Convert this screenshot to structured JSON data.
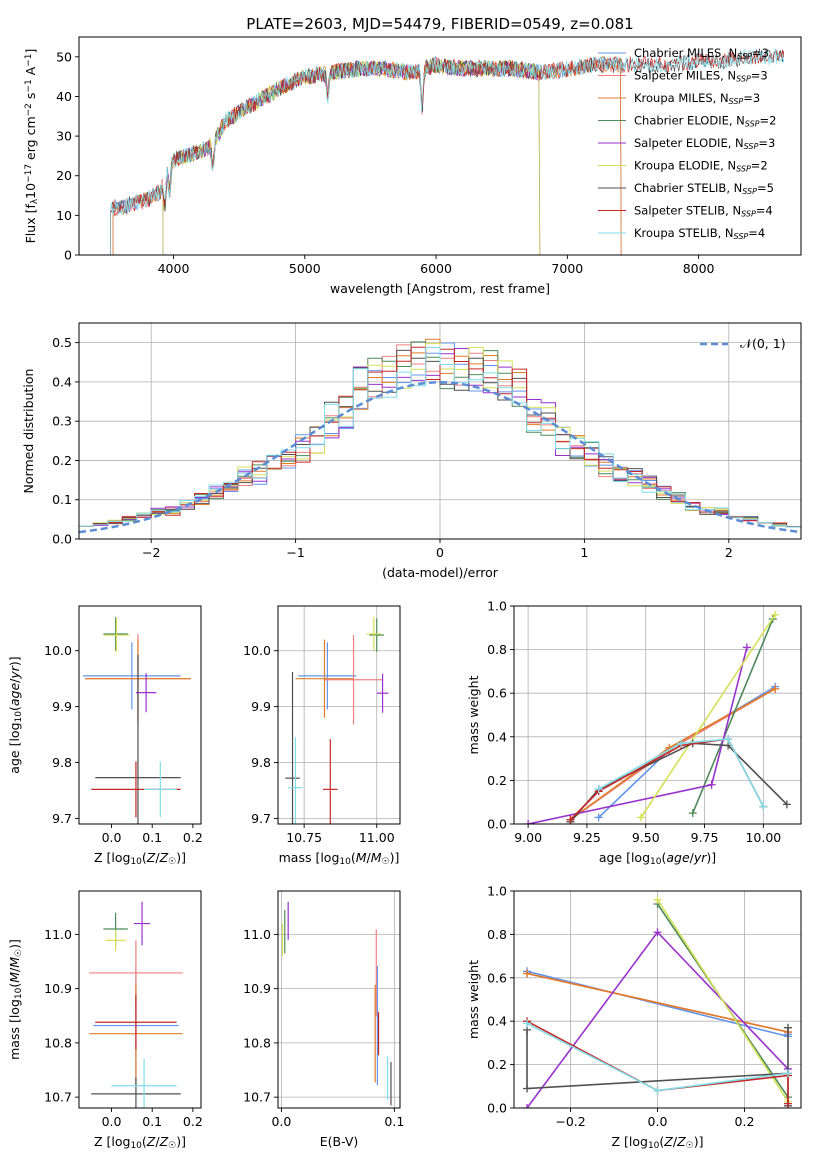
{
  "figure_title": "PLATE=2603, MJD=54479, FIBERID=0549, z=0.081",
  "colors": {
    "chabrier_miles": "#6495ED",
    "salpeter_miles": "#F08080",
    "kroupa_miles": "#E07B28",
    "chabrier_elodie": "#4E8A5A",
    "salpeter_elodie": "#9932CC",
    "kroupa_elodie": "#D4E157",
    "chabrier_stelib": "#505050",
    "salpeter_stelib": "#C62828",
    "kroupa_stelib": "#80DEEA",
    "normal_curve": "#5B8DD6",
    "grid": "#B0B0B0"
  },
  "chart_data": [
    {
      "id": "spectrum",
      "type": "line",
      "title": "PLATE=2603, MJD=54479, FIBERID=0549, z=0.081",
      "xlabel": "wavelength [Angstrom, rest frame]",
      "ylabel": "Flux [f_λ 10^-17 erg cm^-2 s^-1 A^-1]",
      "xlim": [
        3280,
        8780
      ],
      "ylim": [
        0,
        55
      ],
      "xticks": [
        4000,
        5000,
        6000,
        7000,
        8000
      ],
      "yticks": [
        0,
        10,
        20,
        30,
        40,
        50
      ],
      "grid": false,
      "legend_position": "top-right",
      "legend": [
        "Chabrier MILES, N_SSP=3",
        "Salpeter MILES, N_SSP=3",
        "Kroupa MILES, N_SSP=3",
        "Chabrier ELODIE, N_SSP=2",
        "Salpeter ELODIE, N_SSP=3",
        "Kroupa ELODIE, N_SSP=2",
        "Chabrier STELIB, N_SSP=5",
        "Salpeter STELIB, N_SSP=4",
        "Kroupa STELIB, N_SSP=4"
      ],
      "continuum": {
        "wavelength": [
          3520,
          3600,
          3700,
          3800,
          3900,
          3950,
          4000,
          4100,
          4200,
          4300,
          4400,
          4600,
          4800,
          5000,
          5200,
          5400,
          5600,
          5800,
          6000,
          6200,
          6400,
          6600,
          6800,
          7000,
          7200,
          7400,
          7600,
          7800,
          8000,
          8200,
          8400,
          8650
        ],
        "flux": [
          12,
          12,
          13,
          14,
          16,
          22,
          24,
          25,
          26,
          28,
          34,
          38,
          42,
          45,
          46,
          47,
          47,
          46,
          48,
          47,
          47,
          47,
          46,
          47,
          48,
          48,
          48,
          48,
          49,
          49,
          50,
          50
        ]
      },
      "coverage": {
        "MILES": [
          3540,
          7410
        ],
        "ELODIE": [
          3920,
          6790
        ],
        "STELIB": [
          3200,
          9300
        ]
      },
      "absorption_features": [
        {
          "wavelength": 3934,
          "depth": 8
        },
        {
          "wavelength": 3969,
          "depth": 7
        },
        {
          "wavelength": 4300,
          "depth": 6
        },
        {
          "wavelength": 5175,
          "depth": 6
        },
        {
          "wavelength": 5893,
          "depth": 10
        }
      ]
    },
    {
      "id": "residuals",
      "type": "histogram",
      "xlabel": "(data-model)/error",
      "ylabel": "Normed distribution",
      "xlim": [
        -2.5,
        2.5
      ],
      "ylim": [
        0,
        0.55
      ],
      "xticks": [
        -2,
        -1,
        0,
        1,
        2
      ],
      "yticks": [
        0.0,
        0.1,
        0.2,
        0.3,
        0.4,
        0.5
      ],
      "grid": true,
      "bin_width": 0.1,
      "reference_curve": {
        "name": "𝒩(0, 1)",
        "mean": 0,
        "sigma": 1,
        "style": "dashed"
      },
      "legend_position": "top-right"
    },
    {
      "id": "age_vs_Z",
      "type": "scatter",
      "xlabel": "Z [log₁₀(Z/Z☉)]",
      "ylabel": "age [log₁₀(age/yr)]",
      "xlim": [
        -0.08,
        0.22
      ],
      "ylim": [
        9.69,
        10.08
      ],
      "xticks": [
        0.0,
        0.1,
        0.2
      ],
      "yticks": [
        9.7,
        9.8,
        9.9,
        10.0
      ],
      "grid": false,
      "points": [
        {
          "model": "chabrier_miles",
          "x": 0.05,
          "y": 9.955,
          "xerr": 0.12,
          "yerr": 0.06
        },
        {
          "model": "salpeter_miles",
          "x": 0.065,
          "y": 9.95,
          "xerr": 0.13,
          "yerr": 0.08
        },
        {
          "model": "kroupa_miles",
          "x": 0.065,
          "y": 9.95,
          "xerr": 0.13,
          "yerr": 0.07
        },
        {
          "model": "chabrier_elodie",
          "x": 0.01,
          "y": 10.03,
          "xerr": 0.03,
          "yerr": 0.03
        },
        {
          "model": "salpeter_elodie",
          "x": 0.085,
          "y": 9.925,
          "xerr": 0.025,
          "yerr": 0.035
        },
        {
          "model": "kroupa_elodie",
          "x": 0.012,
          "y": 10.028,
          "xerr": 0.032,
          "yerr": 0.03
        },
        {
          "model": "chabrier_stelib",
          "x": 0.065,
          "y": 9.773,
          "xerr": 0.105,
          "yerr": 0.22
        },
        {
          "model": "salpeter_stelib",
          "x": 0.06,
          "y": 9.752,
          "xerr": 0.11,
          "yerr": 0.05
        },
        {
          "model": "kroupa_stelib",
          "x": 0.12,
          "y": 9.752,
          "xerr": 0.04,
          "yerr": 0.05
        }
      ]
    },
    {
      "id": "age_vs_mass",
      "type": "scatter",
      "xlabel": "mass [log₁₀(M/M☉)]",
      "ylabel": "",
      "xlim": [
        10.66,
        11.08
      ],
      "ylim": [
        9.69,
        10.08
      ],
      "xticks": [
        10.75,
        11.0
      ],
      "yticks": [
        9.7,
        9.8,
        9.9,
        10.0
      ],
      "grid": true,
      "points": [
        {
          "model": "chabrier_miles",
          "x": 10.83,
          "y": 9.955,
          "xerr": 0.1,
          "yerr": 0.06
        },
        {
          "model": "salpeter_miles",
          "x": 10.92,
          "y": 9.948,
          "xerr": 0.1,
          "yerr": 0.08
        },
        {
          "model": "kroupa_miles",
          "x": 10.82,
          "y": 9.95,
          "xerr": 0.1,
          "yerr": 0.07
        },
        {
          "model": "chabrier_elodie",
          "x": 11.0,
          "y": 10.028,
          "xerr": 0.025,
          "yerr": 0.03
        },
        {
          "model": "salpeter_elodie",
          "x": 11.02,
          "y": 9.924,
          "xerr": 0.02,
          "yerr": 0.035
        },
        {
          "model": "kroupa_elodie",
          "x": 10.99,
          "y": 10.03,
          "xerr": 0.025,
          "yerr": 0.03
        },
        {
          "model": "chabrier_stelib",
          "x": 10.71,
          "y": 9.772,
          "xerr": 0.025,
          "yerr": 0.19
        },
        {
          "model": "salpeter_stelib",
          "x": 10.84,
          "y": 9.752,
          "xerr": 0.025,
          "yerr": 0.09
        },
        {
          "model": "kroupa_stelib",
          "x": 10.72,
          "y": 9.755,
          "xerr": 0.025,
          "yerr": 0.09
        }
      ]
    },
    {
      "id": "weight_vs_age",
      "type": "line",
      "xlabel": "age [log₁₀(age/yr)]",
      "ylabel": "mass weight",
      "xlim": [
        8.94,
        10.16
      ],
      "ylim": [
        0,
        1.0
      ],
      "xticks": [
        9.0,
        9.25,
        9.5,
        9.75,
        10.0
      ],
      "yticks": [
        0.0,
        0.2,
        0.4,
        0.6,
        0.8,
        1.0
      ],
      "grid": true,
      "series": [
        {
          "model": "chabrier_miles",
          "x": [
            9.3,
            9.6,
            10.05
          ],
          "y": [
            0.03,
            0.34,
            0.63
          ]
        },
        {
          "model": "salpeter_miles",
          "x": [
            9.18,
            9.6,
            10.05
          ],
          "y": [
            0.02,
            0.34,
            0.62
          ]
        },
        {
          "model": "kroupa_miles",
          "x": [
            9.18,
            9.6,
            10.05
          ],
          "y": [
            0.02,
            0.35,
            0.62
          ]
        },
        {
          "model": "chabrier_elodie",
          "x": [
            9.7,
            10.04
          ],
          "y": [
            0.05,
            0.94
          ]
        },
        {
          "model": "salpeter_elodie",
          "x": [
            9.0,
            9.78,
            9.93
          ],
          "y": [
            0.0,
            0.18,
            0.81
          ]
        },
        {
          "model": "kroupa_elodie",
          "x": [
            9.48,
            10.05
          ],
          "y": [
            0.03,
            0.96
          ]
        },
        {
          "model": "chabrier_stelib",
          "x": [
            9.18,
            9.3,
            9.7,
            9.85,
            10.1
          ],
          "y": [
            0.01,
            0.16,
            0.37,
            0.36,
            0.09
          ]
        },
        {
          "model": "salpeter_stelib",
          "x": [
            9.18,
            9.3,
            9.65,
            9.85,
            10.0
          ],
          "y": [
            0.02,
            0.15,
            0.36,
            0.39,
            0.08
          ]
        },
        {
          "model": "kroupa_stelib",
          "x": [
            9.3,
            9.65,
            9.85,
            10.0
          ],
          "y": [
            0.16,
            0.37,
            0.39,
            0.08
          ]
        }
      ]
    },
    {
      "id": "mass_vs_Z",
      "type": "scatter",
      "xlabel": "Z [log₁₀(Z/Z☉)]",
      "ylabel": "mass [log₁₀(M/M☉)]",
      "xlim": [
        -0.08,
        0.22
      ],
      "ylim": [
        10.68,
        11.08
      ],
      "xticks": [
        0.0,
        0.1,
        0.2
      ],
      "yticks": [
        10.7,
        10.8,
        10.9,
        11.0
      ],
      "grid": false,
      "points": [
        {
          "model": "chabrier_miles",
          "x": 0.06,
          "y": 10.832,
          "xerr": 0.105,
          "yerr": 0.11
        },
        {
          "model": "salpeter_miles",
          "x": 0.06,
          "y": 10.929,
          "xerr": 0.115,
          "yerr": 0.06
        },
        {
          "model": "kroupa_miles",
          "x": 0.06,
          "y": 10.817,
          "xerr": 0.115,
          "yerr": 0.09
        },
        {
          "model": "chabrier_elodie",
          "x": 0.01,
          "y": 11.01,
          "xerr": 0.03,
          "yerr": 0.03
        },
        {
          "model": "salpeter_elodie",
          "x": 0.075,
          "y": 11.02,
          "xerr": 0.02,
          "yerr": 0.04
        },
        {
          "model": "kroupa_elodie",
          "x": 0.01,
          "y": 10.989,
          "xerr": 0.025,
          "yerr": 0.02
        },
        {
          "model": "chabrier_stelib",
          "x": 0.06,
          "y": 10.706,
          "xerr": 0.11,
          "yerr": 0.03
        },
        {
          "model": "salpeter_stelib",
          "x": 0.06,
          "y": 10.838,
          "xerr": 0.1,
          "yerr": 0.05
        },
        {
          "model": "kroupa_stelib",
          "x": 0.08,
          "y": 10.721,
          "xerr": 0.08,
          "yerr": 0.05
        }
      ]
    },
    {
      "id": "mass_vs_ebv",
      "type": "scatter",
      "xlabel": "E(B-V)",
      "ylabel": "",
      "xlim": [
        -0.003,
        0.105
      ],
      "ylim": [
        10.68,
        11.08
      ],
      "xticks": [
        0.0,
        0.1
      ],
      "yticks": [
        10.7,
        10.8,
        10.9,
        11.0
      ],
      "grid": true,
      "points": [
        {
          "model": "chabrier_miles",
          "x": 0.085,
          "y": 10.832,
          "xerr": 0.0,
          "yerr": 0.11
        },
        {
          "model": "salpeter_miles",
          "x": 0.084,
          "y": 10.929,
          "xerr": 0.0,
          "yerr": 0.08
        },
        {
          "model": "kroupa_miles",
          "x": 0.083,
          "y": 10.817,
          "xerr": 0.0,
          "yerr": 0.09
        },
        {
          "model": "chabrier_elodie",
          "x": 0.003,
          "y": 11.005,
          "xerr": 0.0,
          "yerr": 0.04
        },
        {
          "model": "salpeter_elodie",
          "x": 0.006,
          "y": 11.025,
          "xerr": 0.0,
          "yerr": 0.035
        },
        {
          "model": "kroupa_elodie",
          "x": 0.001,
          "y": 10.99,
          "xerr": 0.0,
          "yerr": 0.03
        },
        {
          "model": "chabrier_stelib",
          "x": 0.097,
          "y": 10.725,
          "xerr": 0.0,
          "yerr": 0.04
        },
        {
          "model": "salpeter_stelib",
          "x": 0.086,
          "y": 10.817,
          "xerr": 0.0,
          "yerr": 0.04
        },
        {
          "model": "kroupa_stelib",
          "x": 0.094,
          "y": 10.735,
          "xerr": 0.0,
          "yerr": 0.04
        }
      ]
    },
    {
      "id": "weight_vs_Z",
      "type": "line",
      "xlabel": "Z [log₁₀(Z/Z☉)]",
      "ylabel": "mass weight",
      "xlim": [
        -0.33,
        0.33
      ],
      "ylim": [
        0,
        1.0
      ],
      "xticks": [
        -0.2,
        0.0,
        0.2
      ],
      "yticks": [
        0.0,
        0.2,
        0.4,
        0.6,
        0.8,
        1.0
      ],
      "grid": true,
      "series": [
        {
          "model": "chabrier_miles",
          "x": [
            -0.3,
            0.3,
            0.3
          ],
          "y": [
            0.63,
            0.33,
            0.34
          ]
        },
        {
          "model": "salpeter_miles",
          "x": [
            -0.3,
            0.3
          ],
          "y": [
            0.62,
            0.35
          ]
        },
        {
          "model": "kroupa_miles",
          "x": [
            -0.3,
            0.3
          ],
          "y": [
            0.62,
            0.35
          ]
        },
        {
          "model": "chabrier_elodie",
          "x": [
            0.0,
            0.3
          ],
          "y": [
            0.94,
            0.05
          ]
        },
        {
          "model": "salpeter_elodie",
          "x": [
            -0.3,
            0.0,
            0.3
          ],
          "y": [
            0.0,
            0.81,
            0.18
          ]
        },
        {
          "model": "kroupa_elodie",
          "x": [
            0.0,
            0.3
          ],
          "y": [
            0.96,
            0.03
          ]
        },
        {
          "model": "chabrier_stelib",
          "x": [
            -0.3,
            -0.3,
            0.3,
            0.3,
            0.3
          ],
          "y": [
            0.36,
            0.09,
            0.16,
            0.37,
            0.01
          ]
        },
        {
          "model": "salpeter_stelib",
          "x": [
            -0.3,
            0.0,
            0.3,
            0.3
          ],
          "y": [
            0.4,
            0.08,
            0.15,
            0.02
          ]
        },
        {
          "model": "kroupa_stelib",
          "x": [
            -0.3,
            0.0,
            0.3
          ],
          "y": [
            0.39,
            0.08,
            0.16
          ]
        }
      ]
    }
  ]
}
